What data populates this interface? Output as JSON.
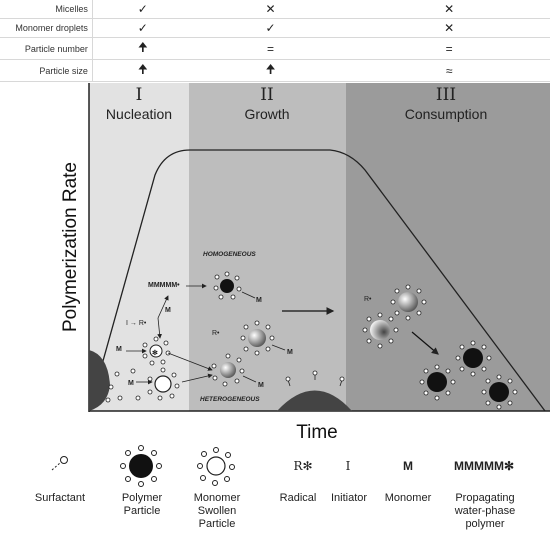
{
  "table": {
    "rows": [
      {
        "label": "Micelles",
        "cells": [
          "✓",
          "✕",
          "✕"
        ]
      },
      {
        "label": "Monomer droplets",
        "cells": [
          "✓",
          "✓",
          "✕"
        ]
      },
      {
        "label": "Particle number",
        "cells": [
          "🠉",
          "=",
          "="
        ]
      },
      {
        "label": "Particle size",
        "cells": [
          "🠉",
          "🠉",
          "≈"
        ]
      }
    ]
  },
  "phases": [
    {
      "num": "I",
      "name": "Nucleation",
      "color": "#e2e2e2"
    },
    {
      "num": "II",
      "name": "Growth",
      "color": "#bdbdbd"
    },
    {
      "num": "III",
      "name": "Consumption",
      "color": "#9a9a9a"
    }
  ],
  "axes": {
    "y": "Polymerization Rate",
    "x": "Time"
  },
  "annotations": {
    "homogeneous": "HOMOGENEOUS",
    "heterogeneous": "HETEROGENEOUS",
    "m": "M",
    "initiator_reaction": "I → R•",
    "radical": "R•",
    "propagating": "MMMMM•"
  },
  "legend": [
    {
      "symbol": "surfactant-icon",
      "label": "Surfactant"
    },
    {
      "symbol": "polymer-particle-icon",
      "label": "Polymer Particle"
    },
    {
      "symbol": "monomer-swollen-particle-icon",
      "label": "Monomer Swollen Particle"
    },
    {
      "symbol": "R✻",
      "label": "Radical"
    },
    {
      "symbol": "I",
      "label": "Initiator"
    },
    {
      "symbol": "M",
      "label": "Monomer"
    },
    {
      "symbol": "MMMMM✻",
      "label": "Propagating water-phase polymer"
    }
  ]
}
